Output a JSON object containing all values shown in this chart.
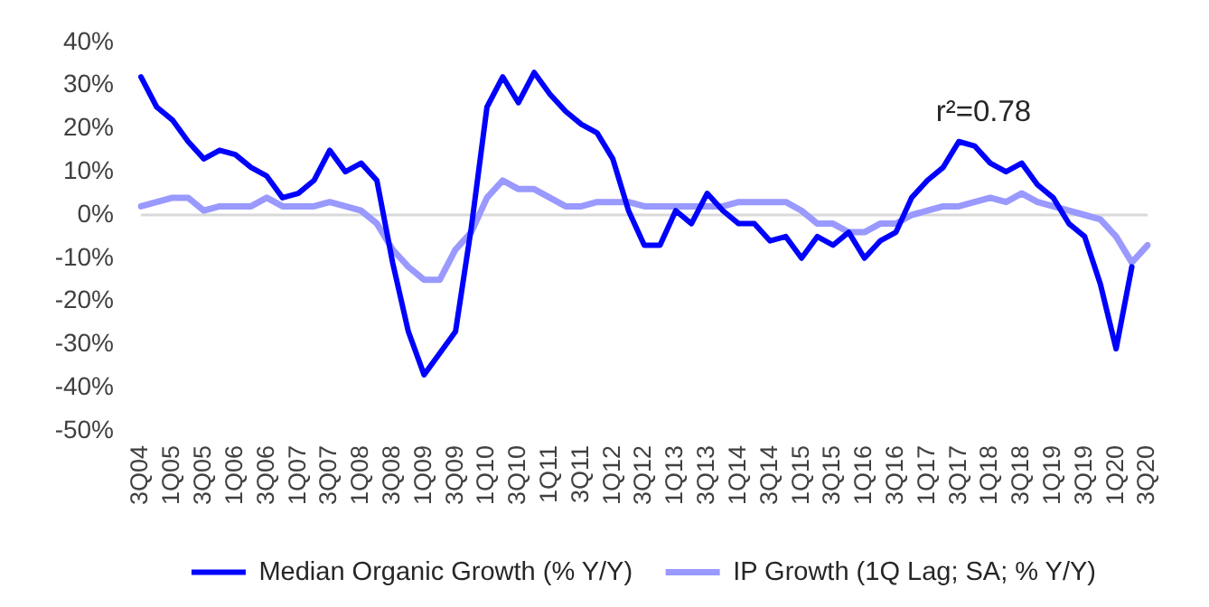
{
  "chart_data": {
    "type": "line",
    "annotations": [
      "r²=0.78"
    ],
    "categories": [
      "3Q04",
      null,
      "1Q05",
      null,
      "3Q05",
      null,
      "1Q06",
      null,
      "3Q06",
      null,
      "1Q07",
      null,
      "3Q07",
      null,
      "1Q08",
      null,
      "3Q08",
      null,
      "1Q09",
      null,
      "3Q09",
      null,
      "1Q10",
      null,
      "3Q10",
      null,
      "1Q11",
      null,
      "3Q11",
      null,
      "1Q12",
      null,
      "3Q12",
      null,
      "1Q13",
      null,
      "3Q13",
      null,
      "1Q14",
      null,
      "3Q14",
      null,
      "1Q15",
      null,
      "3Q15",
      null,
      "1Q16",
      null,
      "3Q16",
      null,
      "1Q17",
      null,
      "3Q17",
      null,
      "1Q18",
      null,
      "3Q18",
      null,
      "1Q19",
      null,
      "3Q19",
      null,
      "1Q20",
      null,
      "3Q20"
    ],
    "series": [
      {
        "name": "Median Organic Growth (% Y/Y)",
        "color": "#0000ff",
        "values": [
          32,
          25,
          22,
          17,
          13,
          15,
          14,
          11,
          9,
          4,
          5,
          8,
          15,
          10,
          12,
          8,
          -11,
          -27,
          -37,
          -32,
          -27,
          -3,
          25,
          32,
          26,
          33,
          28,
          24,
          21,
          19,
          13,
          1,
          -7,
          -7,
          1,
          -2,
          5,
          1,
          -2,
          -2,
          -6,
          -5,
          -10,
          -5,
          -7,
          -4,
          -10,
          -6,
          -4,
          4,
          8,
          11,
          17,
          16,
          12,
          10,
          12,
          7,
          4,
          -2,
          -5,
          -16,
          -31,
          -12,
          null
        ]
      },
      {
        "name": "IP Growth (1Q Lag; SA; % Y/Y)",
        "color": "#9999ff",
        "values": [
          2,
          3,
          4,
          4,
          1,
          2,
          2,
          2,
          4,
          2,
          2,
          2,
          3,
          2,
          1,
          -2,
          -8,
          -12,
          -15,
          -15,
          -8,
          -4,
          4,
          8,
          6,
          6,
          4,
          2,
          2,
          3,
          3,
          3,
          2,
          2,
          2,
          2,
          2,
          2,
          3,
          3,
          3,
          3,
          1,
          -2,
          -2,
          -4,
          -4,
          -2,
          -2,
          0,
          1,
          2,
          2,
          3,
          4,
          3,
          5,
          3,
          2,
          1,
          0,
          -1,
          -5,
          -11,
          -7
        ]
      }
    ],
    "ylim": [
      -50,
      40
    ],
    "yticks": [
      {
        "value": -50,
        "label": "-50%"
      },
      {
        "value": -40,
        "label": "-40%"
      },
      {
        "value": -30,
        "label": "-30%"
      },
      {
        "value": -20,
        "label": "-20%"
      },
      {
        "value": -10,
        "label": "-10%"
      },
      {
        "value": 0,
        "label": "0%"
      },
      {
        "value": 10,
        "label": "10%"
      },
      {
        "value": 20,
        "label": "20%"
      },
      {
        "value": 30,
        "label": "30%"
      },
      {
        "value": 40,
        "label": "40%"
      }
    ],
    "ref_lines": [
      {
        "axis": "y",
        "value": 0,
        "color": "#d9d9d9"
      }
    ],
    "grid": false,
    "legend": "bottom",
    "marker": "none",
    "line_style": "solid"
  }
}
